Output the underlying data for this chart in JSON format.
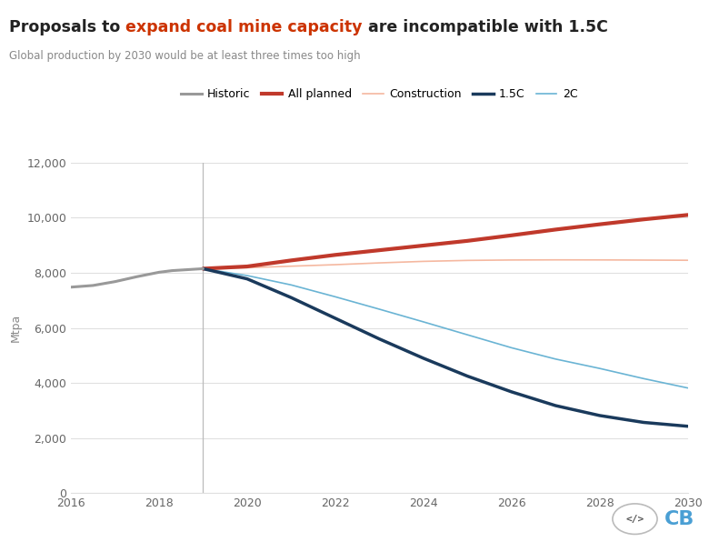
{
  "title_part1": "Proposals to ",
  "title_highlight": "expand coal mine capacity",
  "title_part2": " are incompatible with 1.5C",
  "subtitle": "Global production by 2030 would be at least three times too high",
  "ylabel": "Mtpa",
  "background_color": "#ffffff",
  "title_color": "#222222",
  "title_highlight_color": "#cc3300",
  "subtitle_color": "#888888",
  "historic_x": [
    2016,
    2016.5,
    2017,
    2017.5,
    2018,
    2018.3,
    2018.7,
    2019
  ],
  "historic_y": [
    7480,
    7540,
    7680,
    7860,
    8020,
    8080,
    8120,
    8150
  ],
  "historic_color": "#999999",
  "historic_linewidth": 2.2,
  "historic_label": "Historic",
  "all_planned_x": [
    2019,
    2020,
    2021,
    2022,
    2023,
    2024,
    2025,
    2026,
    2027,
    2028,
    2029,
    2030
  ],
  "all_planned_y": [
    8150,
    8230,
    8450,
    8650,
    8820,
    8990,
    9160,
    9360,
    9570,
    9760,
    9940,
    10100
  ],
  "all_planned_color": "#c0392b",
  "all_planned_linewidth": 3.0,
  "all_planned_label": "All planned",
  "construction_x": [
    2019,
    2020,
    2021,
    2022,
    2023,
    2024,
    2025,
    2026,
    2027,
    2028,
    2029,
    2030
  ],
  "construction_y": [
    8150,
    8185,
    8240,
    8295,
    8360,
    8415,
    8450,
    8465,
    8470,
    8468,
    8462,
    8455
  ],
  "construction_color": "#f5b8a0",
  "construction_linewidth": 1.2,
  "construction_label": "Construction",
  "s15c_x": [
    2019,
    2020,
    2021,
    2022,
    2023,
    2024,
    2025,
    2026,
    2027,
    2028,
    2029,
    2030
  ],
  "s15c_y": [
    8150,
    7780,
    7100,
    6350,
    5600,
    4900,
    4250,
    3680,
    3180,
    2820,
    2570,
    2430
  ],
  "s15c_color": "#1a3a5c",
  "s15c_linewidth": 2.5,
  "s15c_label": "1.5C",
  "s2c_x": [
    2019,
    2020,
    2021,
    2022,
    2023,
    2024,
    2025,
    2026,
    2027,
    2028,
    2029,
    2030
  ],
  "s2c_y": [
    8150,
    7900,
    7560,
    7130,
    6680,
    6220,
    5750,
    5280,
    4870,
    4530,
    4160,
    3820
  ],
  "s2c_color": "#6ab4d4",
  "s2c_linewidth": 1.2,
  "s2c_label": "2C",
  "vline_x": 2019,
  "vline_color": "#bbbbbb",
  "xlim": [
    2016,
    2030
  ],
  "ylim": [
    0,
    12000
  ],
  "yticks": [
    0,
    2000,
    4000,
    6000,
    8000,
    10000,
    12000
  ],
  "xticks": [
    2016,
    2018,
    2020,
    2022,
    2024,
    2026,
    2028,
    2030
  ],
  "grid_color": "#e0e0e0",
  "cb_logo_color": "#4a9fd4",
  "figsize": [
    7.8,
    5.96
  ],
  "dpi": 100
}
